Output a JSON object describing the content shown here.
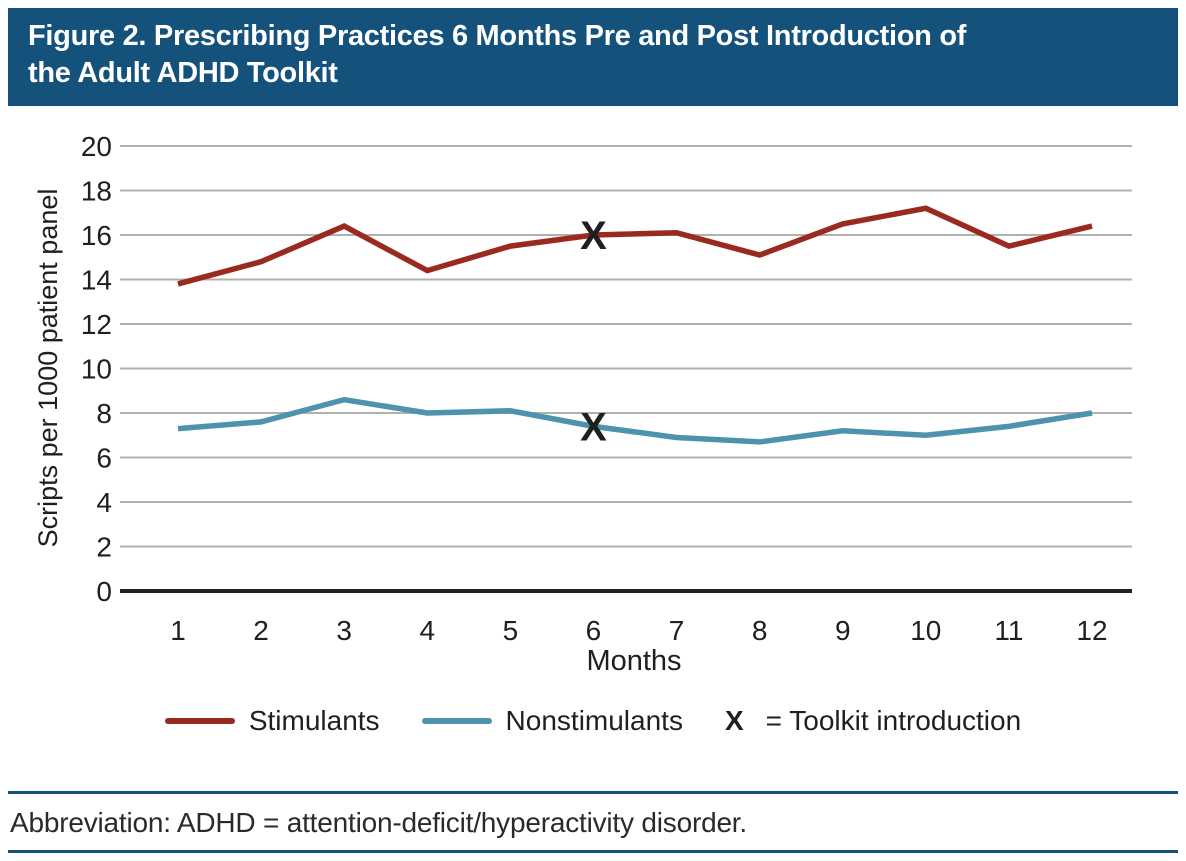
{
  "header": {
    "title": "Figure 2. Prescribing Practices 6 Months Pre and Post Introduction of the Adult ADHD Toolkit",
    "title_line1": "Figure 2. Prescribing Practices 6 Months Pre and Post Introduction of",
    "title_line2": "the Adult ADHD Toolkit"
  },
  "colors": {
    "header_bg": "#15527b",
    "rule": "#15527b",
    "stimulants": "#9a2a20",
    "nonstimulants": "#4d93ad",
    "grid": "#b0b0b0",
    "axis": "#1f1f1f",
    "marker": "#1c1c1c"
  },
  "chart_data": {
    "type": "line",
    "title": "Figure 2. Prescribing Practices 6 Months Pre and Post Introduction of the Adult ADHD Toolkit",
    "xlabel": "Months",
    "ylabel": "Scripts per 1000 patient panel",
    "x": [
      1,
      2,
      3,
      4,
      5,
      6,
      7,
      8,
      9,
      10,
      11,
      12
    ],
    "ylim": [
      0,
      20
    ],
    "ytick_step": 2,
    "grid": true,
    "series": [
      {
        "name": "Stimulants",
        "color": "#9a2a20",
        "values": [
          13.8,
          14.8,
          16.4,
          14.4,
          15.5,
          16.0,
          16.1,
          15.1,
          16.5,
          17.2,
          15.5,
          16.4
        ]
      },
      {
        "name": "Nonstimulants",
        "color": "#4d93ad",
        "values": [
          7.3,
          7.6,
          8.6,
          8.0,
          8.1,
          7.4,
          6.9,
          6.7,
          7.2,
          7.0,
          7.4,
          8.0
        ]
      }
    ],
    "annotations": [
      {
        "label": "X",
        "x": 6,
        "series": "Stimulants",
        "meaning": "Toolkit introduction"
      },
      {
        "label": "X",
        "x": 6,
        "series": "Nonstimulants",
        "meaning": "Toolkit introduction"
      }
    ],
    "legend": {
      "position": "bottom",
      "entries": [
        "Stimulants",
        "Nonstimulants"
      ],
      "note_symbol": "X",
      "note_text": "= Toolkit introduction"
    }
  },
  "footer": {
    "abbreviation": "Abbreviation: ADHD = attention-deficit/hyperactivity disorder."
  }
}
